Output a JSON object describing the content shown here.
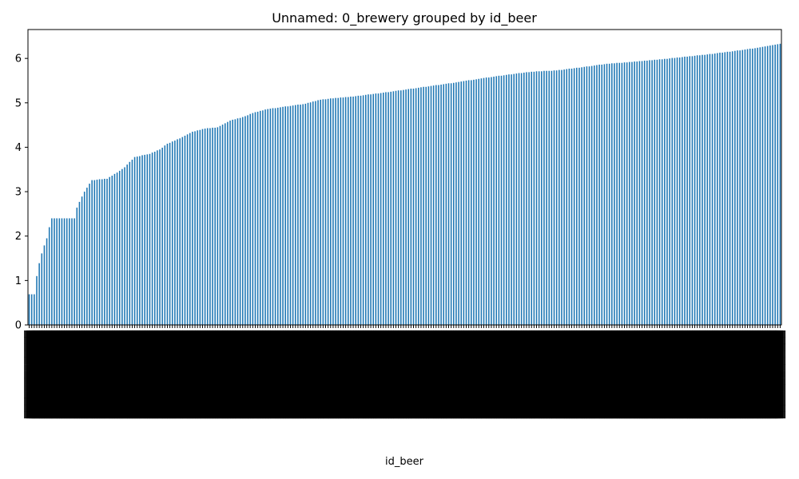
{
  "chart_data": {
    "type": "bar",
    "title": "Unnamed: 0_brewery grouped by id_beer",
    "xlabel": "id_beer",
    "ylabel": "",
    "ylim": [
      0,
      6.65
    ],
    "yticks": [
      0,
      1,
      2,
      3,
      4,
      5,
      6
    ],
    "bar_color": "#1f77b4",
    "grid": false,
    "legend": "none",
    "n_bars": 300,
    "profile": [
      [
        0,
        0.69
      ],
      [
        2,
        0.69
      ],
      [
        3,
        1.1
      ],
      [
        4,
        1.39
      ],
      [
        5,
        1.61
      ],
      [
        6,
        1.79
      ],
      [
        7,
        1.95
      ],
      [
        8,
        2.2
      ],
      [
        9,
        2.4
      ],
      [
        18,
        2.4
      ],
      [
        19,
        2.64
      ],
      [
        20,
        2.77
      ],
      [
        21,
        2.89
      ],
      [
        22,
        3.0
      ],
      [
        23,
        3.09
      ],
      [
        24,
        3.18
      ],
      [
        25,
        3.26
      ],
      [
        31,
        3.29
      ],
      [
        35,
        3.43
      ],
      [
        38,
        3.55
      ],
      [
        42,
        3.78
      ],
      [
        48,
        3.85
      ],
      [
        50,
        3.9
      ],
      [
        52,
        3.95
      ],
      [
        55,
        4.08
      ],
      [
        60,
        4.2
      ],
      [
        65,
        4.35
      ],
      [
        70,
        4.42
      ],
      [
        75,
        4.45
      ],
      [
        80,
        4.6
      ],
      [
        85,
        4.68
      ],
      [
        90,
        4.79
      ],
      [
        95,
        4.86
      ],
      [
        100,
        4.9
      ],
      [
        110,
        4.98
      ],
      [
        115,
        5.06
      ],
      [
        120,
        5.1
      ],
      [
        125,
        5.12
      ],
      [
        130,
        5.15
      ],
      [
        140,
        5.22
      ],
      [
        150,
        5.3
      ],
      [
        160,
        5.38
      ],
      [
        170,
        5.46
      ],
      [
        180,
        5.55
      ],
      [
        190,
        5.63
      ],
      [
        200,
        5.7
      ],
      [
        210,
        5.73
      ],
      [
        220,
        5.8
      ],
      [
        230,
        5.88
      ],
      [
        235,
        5.9
      ],
      [
        240,
        5.92
      ],
      [
        250,
        5.97
      ],
      [
        260,
        6.03
      ],
      [
        270,
        6.09
      ],
      [
        280,
        6.16
      ],
      [
        290,
        6.24
      ],
      [
        299,
        6.33
      ]
    ]
  }
}
